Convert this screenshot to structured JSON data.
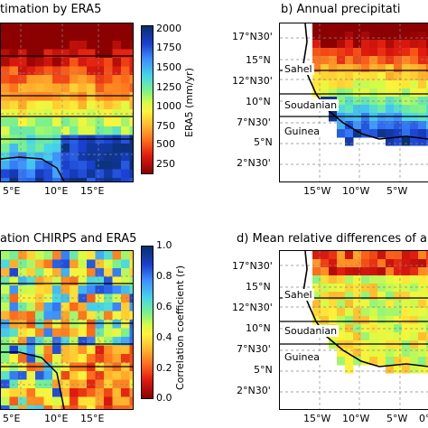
{
  "panels": {
    "a": {
      "title": "timation by ERA5"
    },
    "b": {
      "title": "b) Annual precipitati"
    },
    "c": {
      "title": "ation CHIRPS and ERA5"
    },
    "d": {
      "title": "d) Mean relative differences of ar"
    }
  },
  "lon_ticks_left": [
    "5°E",
    "10°E",
    "15°E"
  ],
  "lon_ticks_right": [
    "15°W",
    "10°W",
    "5°W",
    "0°"
  ],
  "lat_ticks": [
    "17°N30'",
    "15°N",
    "12°N30'",
    "10°N",
    "7°N30'",
    "5°N",
    "2°N30'"
  ],
  "zones": [
    "Sahel",
    "Soudanian",
    "Guinea"
  ],
  "colorbar_top": {
    "label": "ERA5 (mm/yr)",
    "ticks": [
      "2000",
      "1750",
      "1500",
      "1250",
      "1000",
      "750",
      "500",
      "250"
    ],
    "range": [
      100,
      2100
    ]
  },
  "colorbar_bottom": {
    "label": "Correlation coefficient (r)",
    "ticks": [
      "1.0",
      "0.8",
      "0.6",
      "0.4",
      "0.2",
      "0.0"
    ],
    "range": [
      0,
      1
    ]
  },
  "colors": {
    "wet": "#08306b",
    "mid": "#ffff66",
    "dry": "#8b0000",
    "land_line": "#000000",
    "grid": "#888888"
  }
}
